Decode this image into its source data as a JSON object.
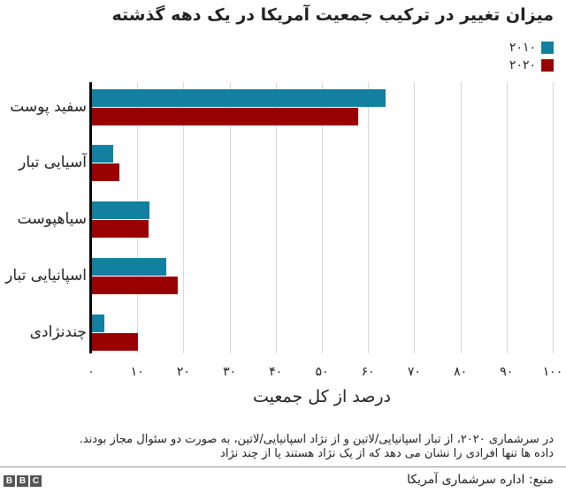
{
  "chart_data": {
    "type": "bar",
    "orientation": "horizontal",
    "title": "میزان تغییر در ترکیب جمعیت آمریکا در یک دهه گذشته",
    "xlabel": "درصد از کل جمعیت",
    "ylabel": "",
    "xlim": [
      0,
      100
    ],
    "grid": true,
    "legend_position": "top-right",
    "categories": [
      "سفید پوست",
      "آسیایی تبار",
      "سیاهپوست",
      "اسپانیایی تبار",
      "چندنژادی"
    ],
    "series": [
      {
        "name": "۲۰۱۰",
        "color": "#1380A1",
        "values": [
          63.7,
          4.8,
          12.6,
          16.3,
          2.9
        ]
      },
      {
        "name": "۲۰۲۰",
        "color": "#990000",
        "values": [
          57.8,
          6.1,
          12.4,
          18.7,
          10.2
        ]
      }
    ],
    "x_ticks": [
      0,
      10,
      20,
      30,
      40,
      50,
      60,
      70,
      80,
      90,
      100
    ],
    "x_tick_labels": [
      "۰",
      "۱۰",
      "۲۰",
      "۳۰",
      "۴۰",
      "۵۰",
      "۶۰",
      "۷۰",
      "۸۰",
      "۹۰",
      "۱۰۰"
    ]
  },
  "title": "میزان تغییر در ترکیب جمعیت آمریکا در یک دهه گذشته",
  "legend": [
    {
      "label": "۲۰۱۰",
      "color": "#1380A1"
    },
    {
      "label": "۲۰۲۰",
      "color": "#990000"
    }
  ],
  "xlabel": "درصد از کل جمعیت",
  "note": {
    "line1": "در سرشماری ۲۰۲۰، از تبار اسپانیایی/لاتین و از نژاد اسپانیایی/لاتین، به صورت دو سئوال مجاز بودند.",
    "line2": "داده ها تنها افرادی را نشان می دهد که  از یک نژاد هستند یا از چند نژاد"
  },
  "source": "منبع: اداره سرشماری آمریکا",
  "logo": [
    "B",
    "B",
    "C"
  ]
}
